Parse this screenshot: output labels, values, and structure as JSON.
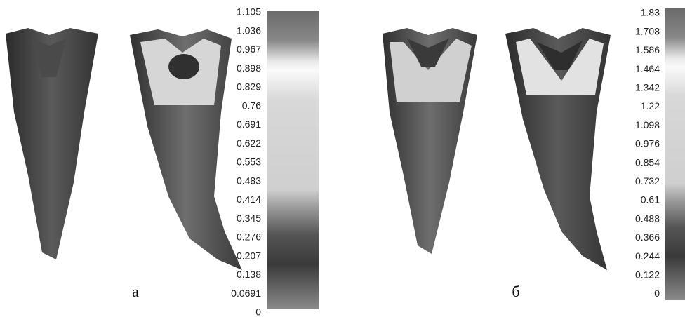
{
  "panels": [
    {
      "label": "а",
      "colorbar_labels": [
        "1.105",
        "1.036",
        "0.967",
        "0.898",
        "0.829",
        "0.76",
        "0.691",
        "0.622",
        "0.553",
        "0.483",
        "0.414",
        "0.345",
        "0.276",
        "0.207",
        "0.138",
        "0.0691",
        "0"
      ]
    },
    {
      "label": "б",
      "colorbar_labels": [
        "1.83",
        "1.708",
        "1.586",
        "1.464",
        "1.342",
        "1.22",
        "1.098",
        "0.976",
        "0.854",
        "0.732",
        "0.61",
        "0.488",
        "0.366",
        "0.244",
        "0.122",
        "0"
      ]
    }
  ]
}
